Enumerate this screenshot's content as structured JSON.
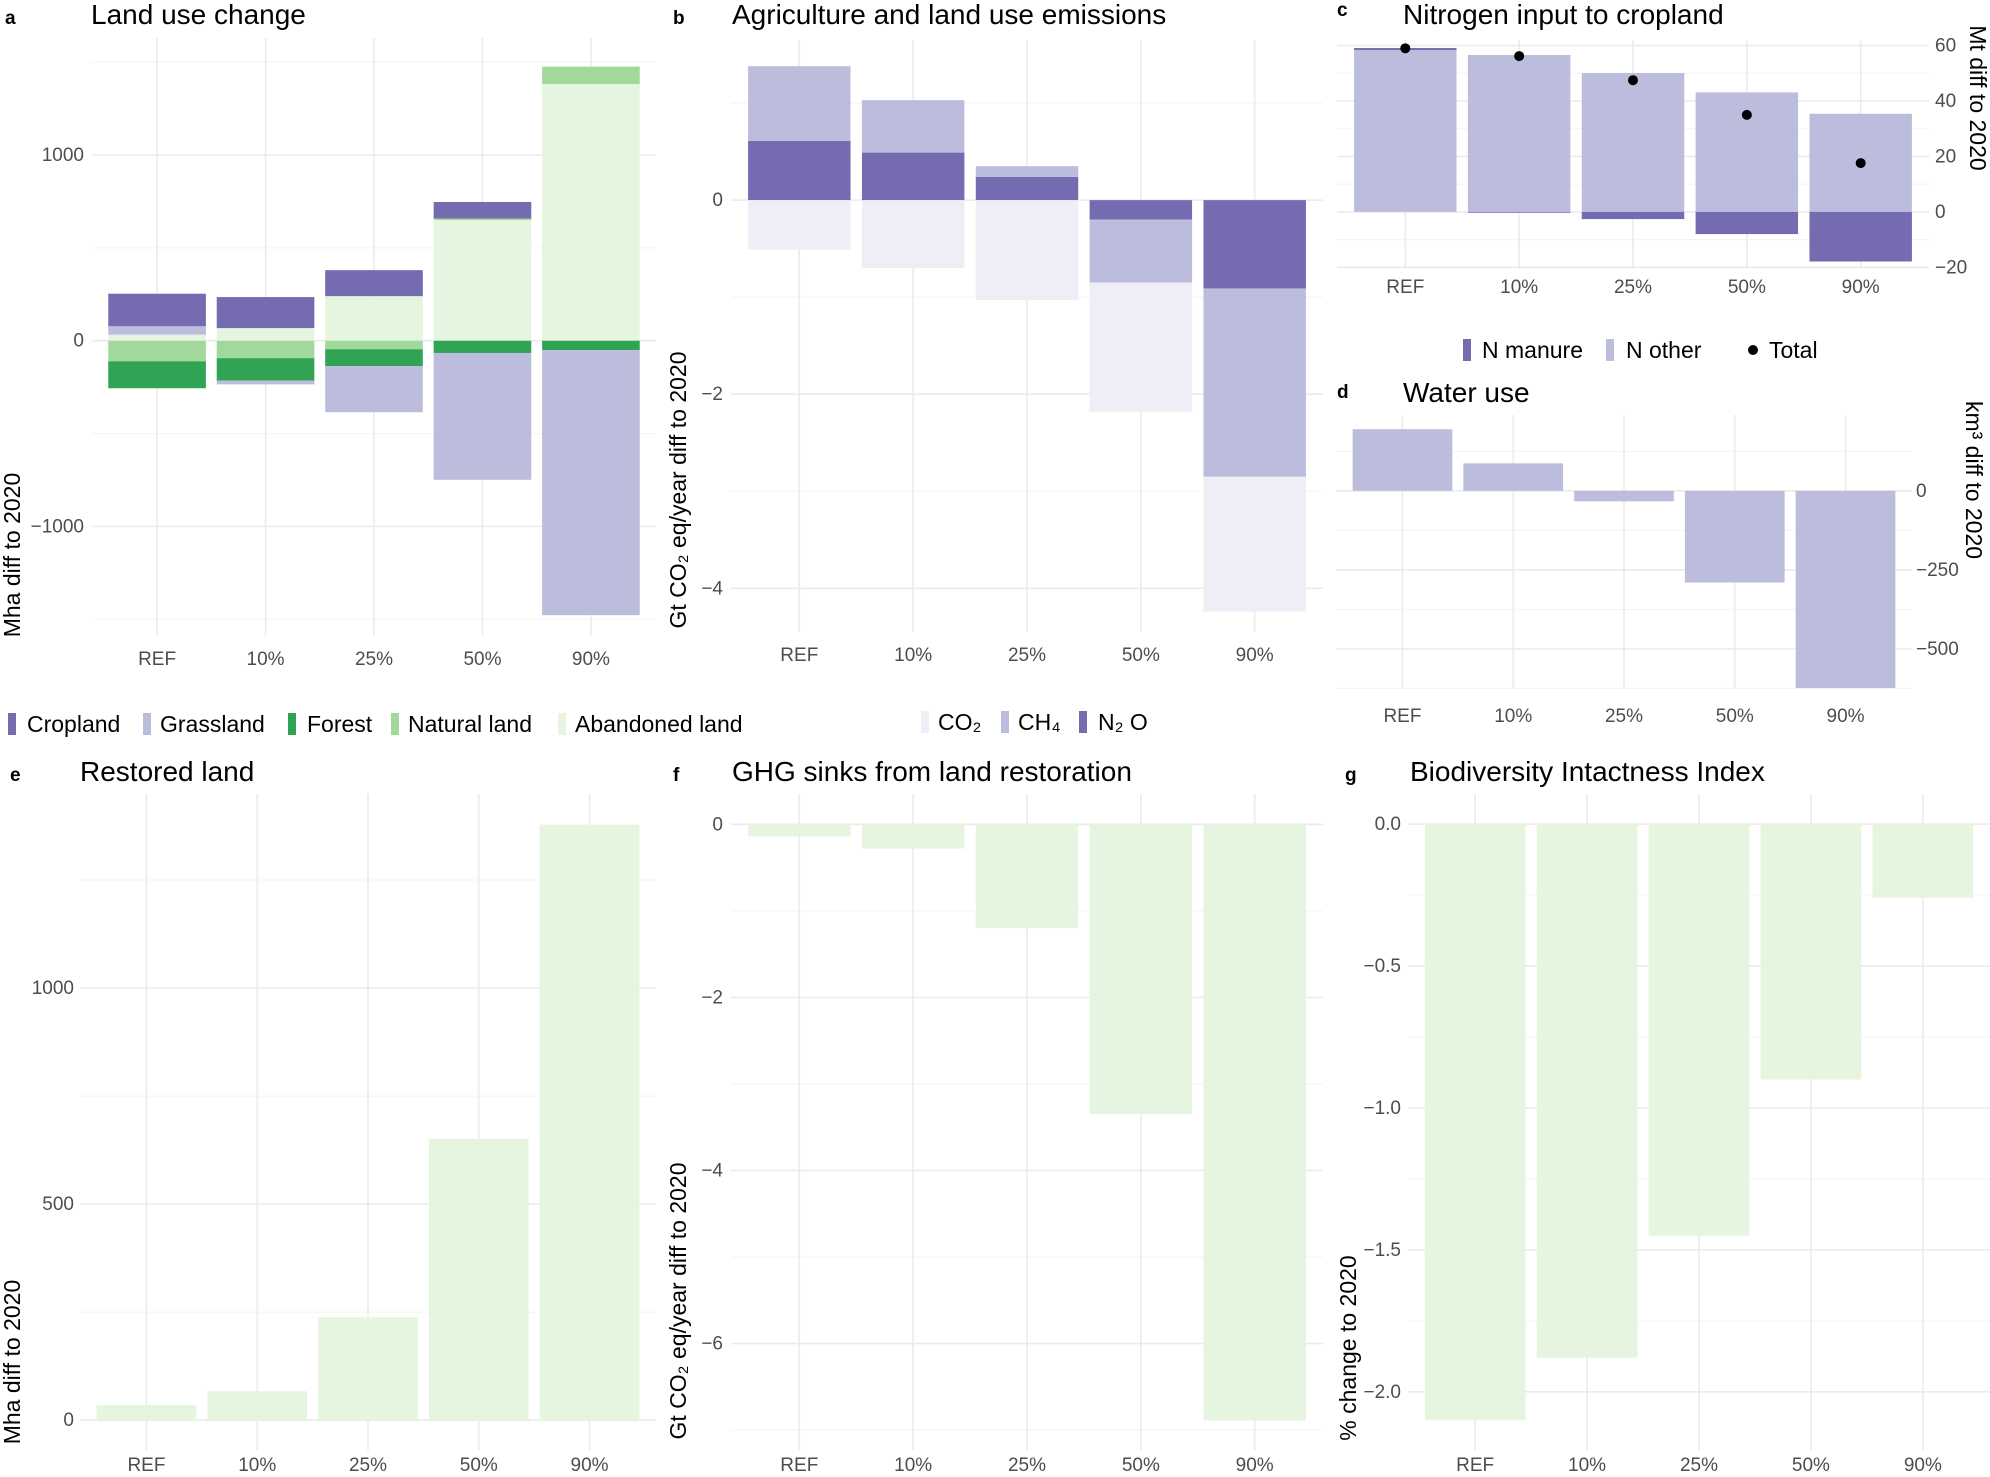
{
  "chart_data": [
    {
      "panel_label": "a",
      "type": "bar",
      "stacked": true,
      "title": "Land use change",
      "ylabel": "Mha diff to 2020",
      "categories": [
        "REF",
        "10%",
        "25%",
        "50%",
        "90%"
      ],
      "series": [
        {
          "name": "Cropland",
          "color": "#756bb1",
          "values": [
            175,
            167,
            140,
            89,
            0
          ]
        },
        {
          "name": "Grassland",
          "color": "#bcbddc",
          "values": [
            45,
            -20,
            -248,
            -683,
            -1427
          ]
        },
        {
          "name": "Forest",
          "color": "#31a354",
          "values": [
            -145,
            -121,
            -91,
            -66,
            -51
          ]
        },
        {
          "name": "Natural land",
          "color": "#a1d99b",
          "values": [
            -111,
            -94,
            -46,
            8,
            94
          ]
        },
        {
          "name": "Abandoned land",
          "color": "#e5f5e0",
          "values": [
            33,
            68,
            240,
            650,
            1382
          ]
        }
      ],
      "stack_order": [
        "Abandoned land",
        "Natural land",
        "Forest",
        "Grassland",
        "Cropland"
      ],
      "ylim": [
        -1590,
        1630
      ],
      "yticks": [
        -1000,
        0,
        1000
      ],
      "ytick_labels": [
        "−1000",
        "0",
        "1000"
      ],
      "y_axis_side": "left",
      "grid": true,
      "legend_position": "bottom",
      "legend": [
        "Cropland",
        "Grassland",
        "Forest",
        "Natural land",
        "Abandoned land"
      ]
    },
    {
      "panel_label": "b",
      "type": "bar",
      "stacked": true,
      "title": "Agriculture and land use emissions",
      "ylabel": "Gt CO₂ eq/year diff to 2020",
      "categories": [
        "REF",
        "10%",
        "25%",
        "50%",
        "90%"
      ],
      "series": [
        {
          "name": "CO₂",
          "color": "#efedf5",
          "values": [
            -0.51,
            -0.7,
            -1.03,
            -1.33,
            -1.39
          ]
        },
        {
          "name": "CH₄",
          "color": "#bcbddc",
          "values": [
            0.77,
            0.54,
            0.11,
            -0.65,
            -1.94
          ]
        },
        {
          "name": "N₂ O",
          "color": "#756bb1",
          "values": [
            0.61,
            0.49,
            0.24,
            -0.2,
            -0.91
          ]
        }
      ],
      "stack_order": [
        "N₂ O",
        "CH₄",
        "CO₂"
      ],
      "ylim": [
        -4.45,
        1.65
      ],
      "yticks": [
        -4,
        -2,
        0
      ],
      "ytick_labels": [
        "−4",
        "−2",
        "0"
      ],
      "y_axis_side": "left",
      "grid": true,
      "legend_position": "bottom",
      "legend": [
        "CO₂",
        "CH₄",
        "N₂ O"
      ]
    },
    {
      "panel_label": "c",
      "type": "bar",
      "stacked": true,
      "title": "Nitrogen input to cropland",
      "ylabel": "Mt diff to 2020",
      "categories": [
        "REF",
        "10%",
        "25%",
        "50%",
        "90%"
      ],
      "series": [
        {
          "name": "N manure",
          "color": "#756bb1",
          "values": [
            0.7,
            -0.3,
            -2.6,
            -8.0,
            -17.9
          ]
        },
        {
          "name": "N other",
          "color": "#bcbddc",
          "values": [
            58.4,
            56.6,
            50.1,
            43.1,
            35.4
          ]
        }
      ],
      "stack_order": [
        "N other",
        "N manure"
      ],
      "points": {
        "name": "Total",
        "color": "#000000",
        "values": [
          59.0,
          56.2,
          47.5,
          35.0,
          17.6
        ]
      },
      "ylim": [
        -20.6,
        62
      ],
      "yticks": [
        -20,
        0,
        20,
        40,
        60
      ],
      "ytick_labels": [
        "−20",
        "0",
        "20",
        "40",
        "60"
      ],
      "y_axis_side": "right",
      "grid": true,
      "legend_position": "bottom",
      "legend": [
        "N manure",
        "N other",
        "Total"
      ]
    },
    {
      "panel_label": "d",
      "type": "bar",
      "title": "Water use",
      "ylabel": "km³ diff to 2020",
      "categories": [
        "REF",
        "10%",
        "25%",
        "50%",
        "90%"
      ],
      "series": [
        {
          "color": "#bcbddc",
          "values": [
            195,
            87,
            -33,
            -290,
            -624
          ]
        }
      ],
      "ylim": [
        -627,
        240
      ],
      "yticks": [
        -500,
        -250,
        0
      ],
      "ytick_labels": [
        "−500",
        "−250",
        "0"
      ],
      "y_axis_side": "right",
      "grid": true
    },
    {
      "panel_label": "e",
      "type": "bar",
      "title": "Restored land",
      "ylabel": "Mha diff to 2020",
      "categories": [
        "REF",
        "10%",
        "25%",
        "50%",
        "90%"
      ],
      "series": [
        {
          "color": "#e5f5e0",
          "values": [
            35,
            67,
            238,
            651,
            1378
          ]
        }
      ],
      "ylim": [
        -69,
        1449
      ],
      "yticks": [
        0,
        500,
        1000
      ],
      "ytick_labels": [
        "0",
        "500",
        "1000"
      ],
      "y_axis_side": "left",
      "grid": true
    },
    {
      "panel_label": "f",
      "type": "bar",
      "title": "GHG sinks from land restoration",
      "ylabel": "Gt CO₂ eq/year diff to 2020",
      "categories": [
        "REF",
        "10%",
        "25%",
        "50%",
        "90%"
      ],
      "series": [
        {
          "color": "#e5f5e0",
          "values": [
            -0.14,
            -0.28,
            -1.2,
            -3.35,
            -6.89
          ]
        }
      ],
      "ylim": [
        -7.23,
        0.35
      ],
      "yticks": [
        -6,
        -4,
        -2,
        0
      ],
      "ytick_labels": [
        "−6",
        "−4",
        "−2",
        "0"
      ],
      "y_axis_side": "left",
      "grid": true
    },
    {
      "panel_label": "g",
      "type": "bar",
      "title": "Biodiversity Intactness Index",
      "ylabel": "% change to 2020",
      "categories": [
        "REF",
        "10%",
        "25%",
        "50%",
        "90%"
      ],
      "series": [
        {
          "color": "#e5f5e0",
          "values": [
            -2.1,
            -1.88,
            -1.45,
            -0.9,
            -0.26
          ]
        }
      ],
      "ylim": [
        -2.205,
        0.106
      ],
      "yticks": [
        -2.0,
        -1.5,
        -1.0,
        -0.5,
        0.0
      ],
      "ytick_labels": [
        "−2.0",
        "−1.5",
        "−1.0",
        "−0.5",
        "0.0"
      ],
      "y_axis_side": "left",
      "grid": true
    }
  ]
}
